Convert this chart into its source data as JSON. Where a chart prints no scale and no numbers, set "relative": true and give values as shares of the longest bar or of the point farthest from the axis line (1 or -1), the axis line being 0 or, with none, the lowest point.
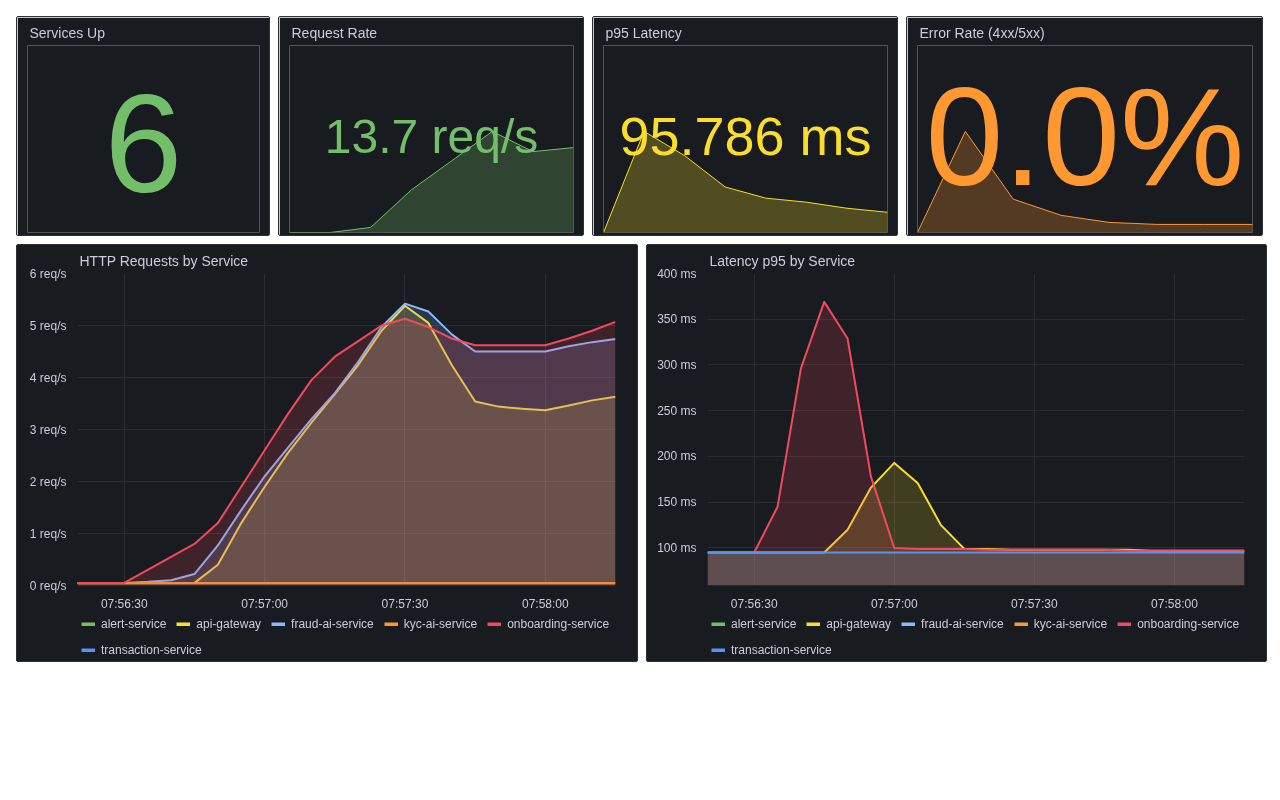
{
  "chart_data": [
    {
      "type": "other",
      "title": "Services Up",
      "annotations": [
        "6"
      ],
      "color": "#73bf69"
    },
    {
      "type": "area",
      "title": "Request Rate",
      "relative": true,
      "annotations": [
        "13.7 req/s"
      ],
      "color": "#73bf69",
      "categories": [
        null,
        null,
        null,
        null,
        null,
        null,
        null,
        null
      ],
      "values": [
        0,
        0,
        0.05,
        0.42,
        0.71,
        1.0,
        0.8,
        0.84
      ]
    },
    {
      "type": "area",
      "title": "p95 Latency",
      "relative": true,
      "annotations": [
        "95.786 ms"
      ],
      "color": "#fade2a",
      "categories": [
        null,
        null,
        null,
        null,
        null,
        null,
        null,
        null
      ],
      "values": [
        0,
        1.0,
        0.76,
        0.45,
        0.34,
        0.3,
        0.24,
        0.2
      ]
    },
    {
      "type": "area",
      "title": "Error Rate (4xx/5xx)",
      "relative": true,
      "annotations": [
        "0.0%"
      ],
      "color": "#ff9830",
      "categories": [
        null,
        null,
        null,
        null,
        null,
        null,
        null,
        null
      ],
      "values": [
        0,
        1.0,
        0.33,
        0.17,
        0.1,
        0.08,
        0.08,
        0.08
      ]
    },
    {
      "type": "area",
      "title": "HTTP Requests by Service",
      "grid": true,
      "legend": "bottom",
      "x": [
        7.938889,
        7.940278,
        7.941667,
        7.943056,
        7.944444,
        7.945833,
        7.947222,
        7.948611,
        7.95,
        7.951389,
        7.952778,
        7.954167,
        7.955556,
        7.956944,
        7.958333,
        7.959722,
        7.961111,
        7.9625,
        7.963889,
        7.965278,
        7.966667,
        7.968056,
        7.969444,
        7.970833
      ],
      "xlim": [
        7.938889,
        7.970833
      ],
      "xticks": [
        {
          "value": 7.941667,
          "label": "07:56:30"
        },
        {
          "value": 7.95,
          "label": "07:57:00"
        },
        {
          "value": 7.958333,
          "label": "07:57:30"
        },
        {
          "value": 7.966667,
          "label": "07:58:00"
        }
      ],
      "ylim": [
        0,
        6
      ],
      "yticks": [
        {
          "value": 0,
          "label": "0 req/s"
        },
        {
          "value": 1,
          "label": "1 req/s"
        },
        {
          "value": 2,
          "label": "2 req/s"
        },
        {
          "value": 3,
          "label": "3 req/s"
        },
        {
          "value": 4,
          "label": "4 req/s"
        },
        {
          "value": 5,
          "label": "5 req/s"
        },
        {
          "value": 6,
          "label": "6 req/s"
        }
      ],
      "series": [
        {
          "name": "alert-service",
          "color": "#73bf69",
          "values": [
            null,
            null,
            null,
            null,
            null,
            null,
            null,
            null,
            null,
            null,
            null,
            null,
            null,
            null,
            null,
            null,
            null,
            null,
            null,
            null,
            null,
            null,
            null,
            null
          ]
        },
        {
          "name": "api-gateway",
          "color": "#fade2a",
          "values": [
            0.05,
            0.05,
            0.05,
            0.05,
            0.05,
            0.05,
            0.4,
            1.2,
            1.9,
            2.55,
            3.13,
            3.68,
            4.24,
            4.9,
            5.38,
            5.05,
            4.24,
            3.54,
            3.44,
            3.4,
            3.37,
            3.46,
            3.56,
            3.63
          ]
        },
        {
          "name": "fraud-ai-service",
          "color": "#8ab8ff",
          "values": [
            0.05,
            0.05,
            0.05,
            0.07,
            0.1,
            0.22,
            0.77,
            1.45,
            2.1,
            2.65,
            3.2,
            3.7,
            4.3,
            4.97,
            5.42,
            5.27,
            4.83,
            4.5,
            4.5,
            4.5,
            4.5,
            4.6,
            4.68,
            4.74
          ]
        },
        {
          "name": "kyc-ai-service",
          "color": "#ff9830",
          "values": [
            0.05,
            0.05,
            0.05,
            0.05,
            0.05,
            0.05,
            0.05,
            0.05,
            0.05,
            0.05,
            0.05,
            0.05,
            0.05,
            0.05,
            0.05,
            0.05,
            0.05,
            0.05,
            0.05,
            0.05,
            0.05,
            0.05,
            0.05,
            0.05
          ]
        },
        {
          "name": "onboarding-service",
          "color": "#f2495c",
          "values": [
            0.05,
            0.05,
            0.05,
            0.3,
            0.55,
            0.8,
            1.2,
            1.9,
            2.6,
            3.3,
            3.95,
            4.4,
            4.7,
            5.0,
            5.13,
            4.97,
            4.75,
            4.62,
            4.62,
            4.62,
            4.62,
            4.75,
            4.9,
            5.07
          ]
        },
        {
          "name": "transaction-service",
          "color": "#5794f2",
          "values": [
            null,
            null,
            null,
            null,
            null,
            null,
            null,
            null,
            null,
            null,
            null,
            null,
            null,
            null,
            null,
            null,
            null,
            null,
            null,
            null,
            null,
            null,
            null,
            null
          ]
        }
      ]
    },
    {
      "type": "area",
      "title": "Latency p95 by Service",
      "grid": true,
      "legend": "bottom",
      "x": [
        7.938889,
        7.940278,
        7.941667,
        7.943056,
        7.944444,
        7.945833,
        7.947222,
        7.948611,
        7.95,
        7.951389,
        7.952778,
        7.954167,
        7.955556,
        7.956944,
        7.958333,
        7.959722,
        7.961111,
        7.9625,
        7.963889,
        7.965278,
        7.966667,
        7.968056,
        7.969444,
        7.970833
      ],
      "xlim": [
        7.938889,
        7.970833
      ],
      "xticks": [
        {
          "value": 7.941667,
          "label": "07:56:30"
        },
        {
          "value": 7.95,
          "label": "07:57:00"
        },
        {
          "value": 7.958333,
          "label": "07:57:30"
        },
        {
          "value": 7.966667,
          "label": "07:58:00"
        }
      ],
      "ylim": [
        59,
        400
      ],
      "yticks": [
        {
          "value": 100,
          "label": "100 ms"
        },
        {
          "value": 150,
          "label": "150 ms"
        },
        {
          "value": 200,
          "label": "200 ms"
        },
        {
          "value": 250,
          "label": "250 ms"
        },
        {
          "value": 300,
          "label": "300 ms"
        },
        {
          "value": 350,
          "label": "350 ms"
        },
        {
          "value": 400,
          "label": "400 ms"
        }
      ],
      "series": [
        {
          "name": "alert-service",
          "color": "#73bf69",
          "values": [
            null,
            null,
            null,
            null,
            null,
            null,
            null,
            null,
            null,
            null,
            null,
            null,
            null,
            null,
            null,
            null,
            null,
            null,
            null,
            null,
            null,
            null,
            null,
            null
          ]
        },
        {
          "name": "api-gateway",
          "color": "#fade2a",
          "values": [
            95,
            95,
            95,
            95,
            95,
            95,
            120,
            166,
            193,
            171,
            125,
            99,
            99,
            98,
            98,
            98,
            98,
            98,
            98,
            97,
            97,
            97,
            97,
            97
          ]
        },
        {
          "name": "fraud-ai-service",
          "color": "#8ab8ff",
          "values": [
            null,
            null,
            null,
            null,
            null,
            null,
            null,
            null,
            null,
            null,
            null,
            null,
            null,
            null,
            null,
            null,
            null,
            null,
            null,
            null,
            null,
            null,
            null,
            null
          ]
        },
        {
          "name": "kyc-ai-service",
          "color": "#ff9830",
          "values": [
            null,
            null,
            null,
            null,
            null,
            null,
            null,
            null,
            null,
            null,
            null,
            null,
            null,
            null,
            null,
            null,
            null,
            null,
            null,
            null,
            null,
            null,
            null,
            null
          ]
        },
        {
          "name": "onboarding-service",
          "color": "#f2495c",
          "values": [
            95,
            95,
            95,
            145,
            296,
            369,
            329,
            178,
            100,
            99,
            99,
            99,
            98,
            98,
            98,
            98,
            98,
            98,
            97,
            97,
            97,
            97,
            97,
            97
          ]
        },
        {
          "name": "transaction-service",
          "color": "#5794f2",
          "values": [
            95,
            95,
            95,
            95,
            95,
            95,
            95,
            95,
            95,
            95,
            95,
            95,
            95,
            95,
            95,
            95,
            95,
            95,
            95,
            95,
            95,
            95,
            95,
            95
          ]
        }
      ]
    }
  ]
}
